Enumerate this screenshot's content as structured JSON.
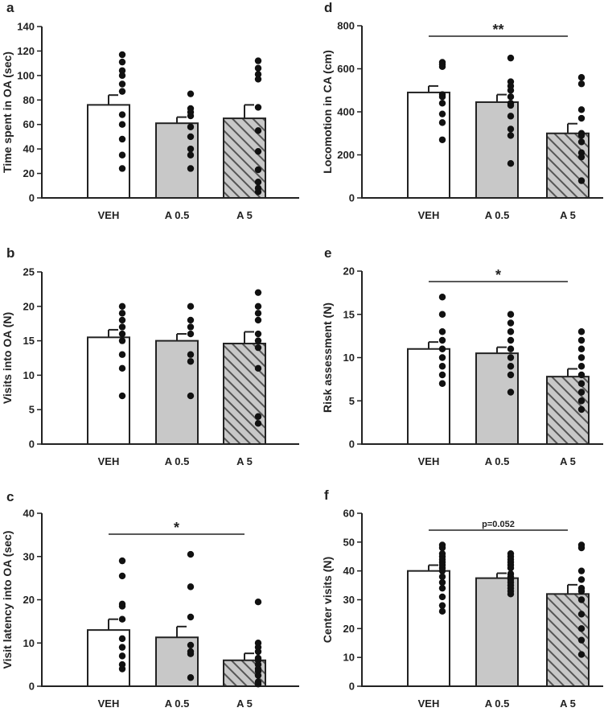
{
  "colors": {
    "bar_fills": [
      "#ffffff",
      "#c8c8c8",
      "#c8c8c8"
    ],
    "bar_stroke": "#222222",
    "hatch_color": "#555555",
    "dot": "#111111"
  },
  "chart_data": [
    {
      "type": "bar",
      "panel": "a",
      "categories": [
        "VEH",
        "A 0.5",
        "A 5"
      ],
      "values": [
        76,
        61,
        65
      ],
      "errors": [
        8,
        5,
        11
      ],
      "ylabel": "Time spent in OA (sec)",
      "ylim": [
        0,
        140
      ],
      "yticks": [
        "0",
        "20",
        "40",
        "60",
        "80",
        "100",
        "120",
        "140"
      ],
      "points": [
        [
          117,
          111,
          104,
          100,
          93,
          87,
          68,
          60,
          48,
          35,
          24
        ],
        [
          85,
          73,
          70,
          67,
          58,
          50,
          40,
          35,
          24
        ],
        [
          112,
          106,
          101,
          97,
          74,
          55,
          38,
          23,
          13,
          8,
          5
        ]
      ],
      "significance": null
    },
    {
      "type": "bar",
      "panel": "b",
      "categories": [
        "VEH",
        "A 0.5",
        "A 5"
      ],
      "values": [
        15.5,
        15,
        14.6
      ],
      "errors": [
        1.1,
        1.0,
        1.7
      ],
      "ylabel": "Visits into OA (N)",
      "ylim": [
        0,
        25
      ],
      "yticks": [
        "0",
        "5",
        "10",
        "15",
        "20",
        "25"
      ],
      "points": [
        [
          20,
          19,
          18,
          17,
          16,
          15,
          13,
          11,
          7
        ],
        [
          20,
          18,
          17,
          16,
          13,
          12,
          7
        ],
        [
          22,
          20,
          19,
          18,
          16,
          15,
          14,
          11,
          4,
          3
        ]
      ],
      "significance": null
    },
    {
      "type": "bar",
      "panel": "c",
      "categories": [
        "VEH",
        "A 0.5",
        "A 5"
      ],
      "values": [
        13,
        11.3,
        6
      ],
      "errors": [
        2.5,
        2.5,
        1.6
      ],
      "ylabel": "Visit latency into OA (sec)",
      "ylim": [
        0,
        40
      ],
      "yticks": [
        "0",
        "10",
        "20",
        "30",
        "40"
      ],
      "points": [
        [
          29,
          25.5,
          19,
          18.5,
          15.5,
          11,
          9,
          7,
          5,
          4
        ],
        [
          30.5,
          23,
          16,
          9.5,
          8,
          7.5,
          2
        ],
        [
          19.5,
          10,
          9,
          8,
          6.5,
          6,
          5,
          4,
          3.5,
          2.5,
          1,
          0.5
        ]
      ],
      "significance": "*"
    },
    {
      "type": "bar",
      "panel": "d",
      "categories": [
        "VEH",
        "A 0.5",
        "A 5"
      ],
      "values": [
        490,
        445,
        300
      ],
      "errors": [
        30,
        35,
        45
      ],
      "ylabel": "Locomotion in CA (cm)",
      "ylim": [
        0,
        800
      ],
      "yticks": [
        "0",
        "200",
        "400",
        "600",
        "800"
      ],
      "points": [
        [
          630,
          620,
          610,
          480,
          470,
          440,
          390,
          350,
          270
        ],
        [
          650,
          540,
          520,
          500,
          470,
          440,
          430,
          380,
          320,
          290,
          160
        ],
        [
          560,
          530,
          410,
          370,
          300,
          290,
          260,
          210,
          190,
          80
        ]
      ],
      "significance": "**"
    },
    {
      "type": "bar",
      "panel": "e",
      "categories": [
        "VEH",
        "A 0.5",
        "A 5"
      ],
      "values": [
        11,
        10.5,
        7.8
      ],
      "errors": [
        0.8,
        0.7,
        0.9
      ],
      "ylabel": "Risk assessment (N)",
      "ylim": [
        0,
        20
      ],
      "yticks": [
        "0",
        "5",
        "10",
        "15",
        "20"
      ],
      "points": [
        [
          17,
          15,
          13,
          12,
          11,
          10,
          9,
          8,
          7
        ],
        [
          15,
          14,
          13,
          12,
          11,
          10,
          9,
          8,
          6
        ],
        [
          13,
          12,
          11,
          10,
          9,
          8,
          7,
          6,
          5,
          4
        ]
      ],
      "significance": "*"
    },
    {
      "type": "bar",
      "panel": "f",
      "categories": [
        "VEH",
        "A 0.5",
        "A 5"
      ],
      "values": [
        40,
        37.5,
        32
      ],
      "errors": [
        2,
        1.7,
        3.2
      ],
      "ylabel": "Center visits (N)",
      "ylim": [
        0,
        60
      ],
      "yticks": [
        "0",
        "10",
        "20",
        "30",
        "40",
        "50",
        "60"
      ],
      "points": [
        [
          49,
          48,
          46,
          45,
          44,
          43,
          42,
          41,
          40,
          38,
          36,
          34,
          31,
          28,
          26
        ],
        [
          46,
          45,
          44,
          43,
          42,
          41,
          39,
          38,
          37,
          36,
          35,
          34,
          33,
          32
        ],
        [
          49,
          48,
          40,
          37,
          34,
          33,
          30,
          25,
          20,
          16,
          11
        ]
      ],
      "significance": "p=0.052"
    }
  ]
}
